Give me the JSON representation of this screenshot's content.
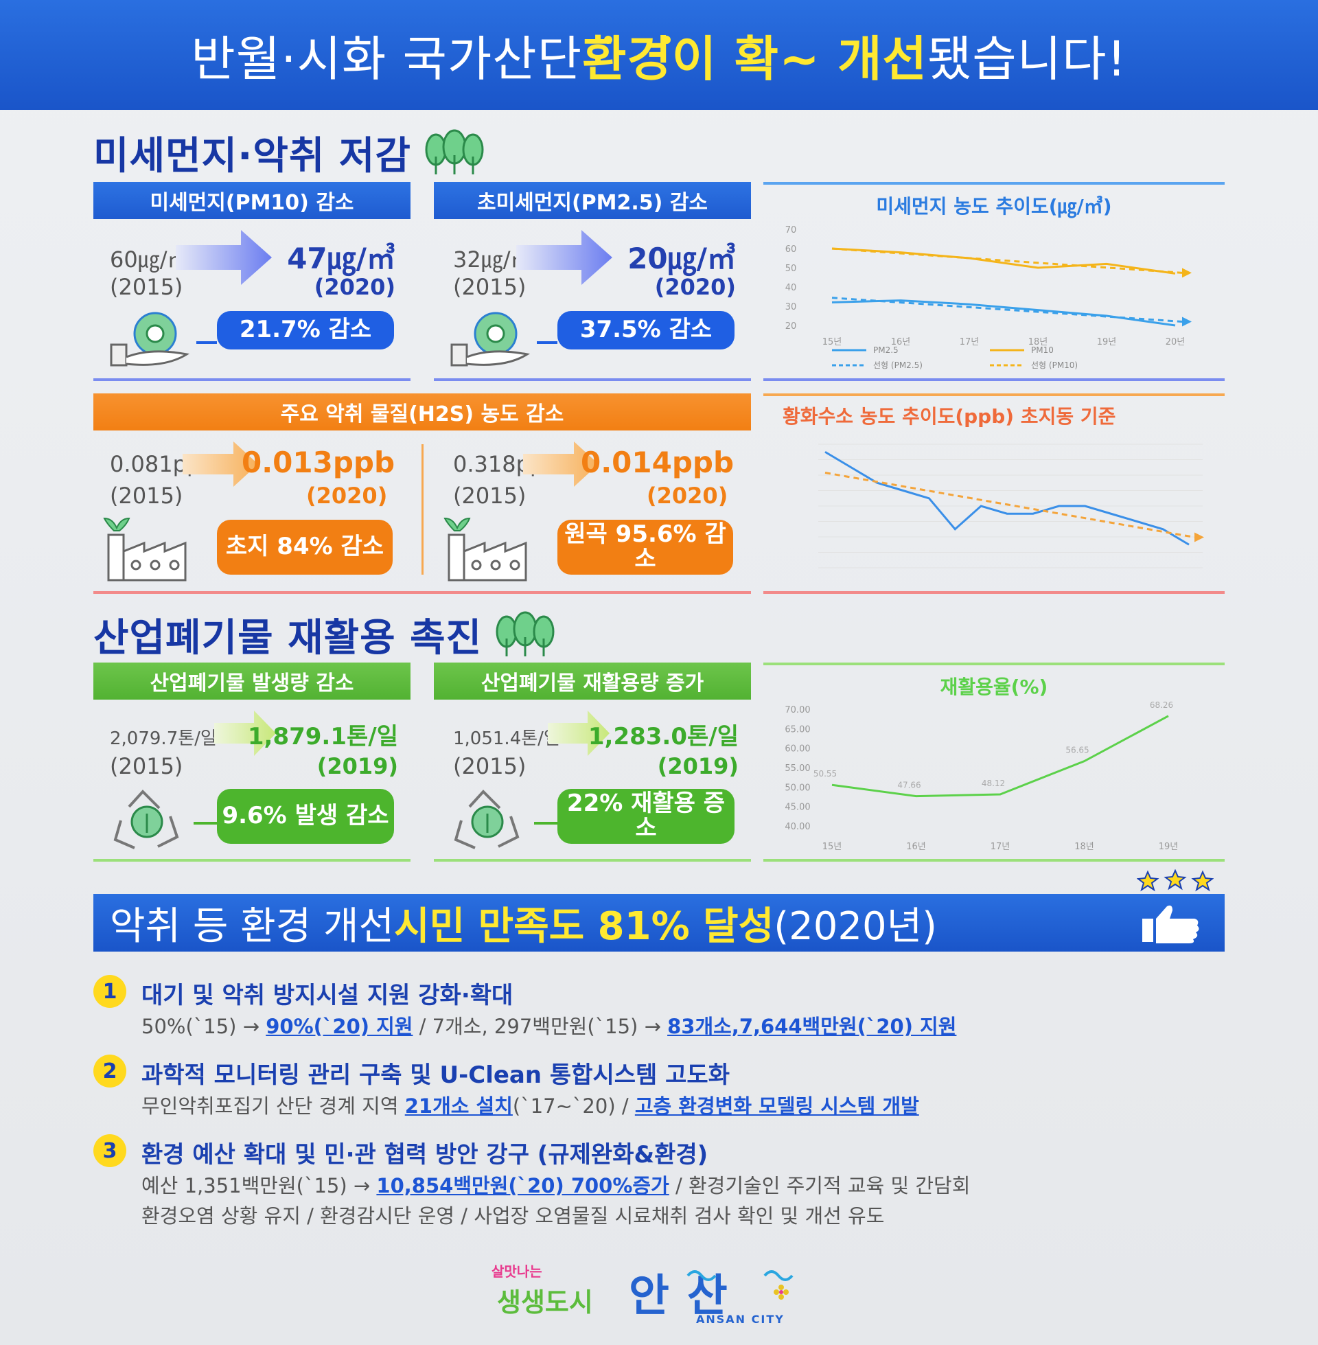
{
  "header": {
    "plain": "반월·시화 국가산단 ",
    "hl1": "환경이 확~ 개선",
    "end": "됐습니다!"
  },
  "section1": {
    "title": "미세먼지·악취 저감"
  },
  "pm10": {
    "bar": "미세먼지(PM10) 감소",
    "before": "60㎍/㎥",
    "before_year": "(2015)",
    "after": "47㎍/㎥",
    "after_year": "(2020)",
    "pill": "21.7% 감소"
  },
  "pm25": {
    "bar": "초미세먼지(PM2.5) 감소",
    "before": "32㎍/㎥",
    "before_year": "(2015)",
    "after": "20㎍/㎥",
    "after_year": "(2020)",
    "pill": "37.5% 감소"
  },
  "h2s": {
    "bar": "주요 악취 물질(H2S) 농도 감소",
    "left": {
      "before": "0.081ppb",
      "before_year": "(2015)",
      "after": "0.013ppb",
      "after_year": "(2020)",
      "pill": "초지 84% 감소"
    },
    "right": {
      "before": "0.318ppb",
      "before_year": "(2015)",
      "after": "0.014ppb",
      "after_year": "(2020)",
      "pill": "원곡 95.6% 감소"
    }
  },
  "section2": {
    "title": "산업폐기물 재활용 촉진"
  },
  "waste": {
    "bar": "산업폐기물 발생량 감소",
    "before": "2,079.7톤/일",
    "before_year": "(2015)",
    "after": "1,879.1톤/일",
    "after_year": "(2019)",
    "pill": "9.6% 발생 감소"
  },
  "recycle": {
    "bar": "산업폐기물 재활용량 증가",
    "before": "1,051.4톤/일",
    "before_year": "(2015)",
    "after": "1,283.0톤/일",
    "after_year": "(2019)",
    "pill": "22% 재활용 증소"
  },
  "banner": {
    "plain": "악취 등 환경 개선 ",
    "hl": "시민 만족도 81% 달성",
    "year": "(2020년)"
  },
  "items": [
    {
      "n": "1",
      "title": "대기 및 악취 방지시설 지원 강화·확대",
      "lines": [
        [
          {
            "t": "50%(`15) → "
          },
          {
            "t": "90%(`20) 지원",
            "b": true
          },
          {
            "t": " / 7개소, 297백만원(`15) → "
          },
          {
            "t": "83개소,7,644백만원(`20) 지원",
            "b": true
          }
        ]
      ]
    },
    {
      "n": "2",
      "title": "과학적 모니터링 관리 구축 및 U-Clean 통합시스템 고도화",
      "lines": [
        [
          {
            "t": "무인악취포집기 산단 경계 지역 "
          },
          {
            "t": "21개소 설치",
            "b": true
          },
          {
            "t": "(`17~`20) / "
          },
          {
            "t": "고층 환경변화 모델링 시스템 개발",
            "b": true
          }
        ]
      ]
    },
    {
      "n": "3",
      "title": "환경 예산 확대 및 민·관 협력 방안 강구 (규제완화&환경)",
      "lines": [
        [
          {
            "t": "예산 1,351백만원(`15) → "
          },
          {
            "t": "10,854백만원(`20) 700%증가",
            "b": true
          },
          {
            "t": " / 환경기술인 주기적 교육 및 간담회"
          }
        ],
        [
          {
            "t": "환경오염 상황 유지 / 환경감시단 운영 / 사업장 오염물질 시료채취 검사 확인 및 개선 유도"
          }
        ]
      ]
    }
  ],
  "footer": {
    "slogan_small": "살맛나는",
    "slogan": "생생도시",
    "city": "안산",
    "city_en": "ANSAN CITY"
  },
  "chart_data": [
    {
      "type": "line",
      "title": "미세먼지 농도 추이도(㎍/㎥)",
      "categories": [
        "15년",
        "16년",
        "17년",
        "18년",
        "19년",
        "20년"
      ],
      "ylim": [
        20,
        70
      ],
      "yticks": [
        "70",
        "60",
        "50",
        "40",
        "30",
        "20"
      ],
      "series": [
        {
          "name": "PM2.5",
          "values": [
            32,
            33,
            31,
            28,
            25,
            20
          ],
          "color": "#3aa0ea"
        },
        {
          "name": "PM10",
          "values": [
            60,
            58,
            55,
            50,
            52,
            47
          ],
          "color": "#f4b41a"
        }
      ],
      "legend": [
        "PM2.5",
        "PM10",
        "선형 (PM2.5)",
        "선형 (PM10)"
      ]
    },
    {
      "type": "line",
      "title": "황화수소 농도 추이도(ppb) 초지동 기준",
      "ylim": [
        0,
        0.16
      ],
      "series": [
        {
          "name": "",
          "values": [
            0.15,
            0.13,
            0.11,
            0.1,
            0.09,
            0.05,
            0.08,
            0.07,
            0.07,
            0.08,
            0.08,
            0.07,
            0.06,
            0.05,
            0.03
          ],
          "color": "#3a8fe8"
        }
      ],
      "trend_color": "#f4a43a"
    },
    {
      "type": "line",
      "title": "재활용율(%)",
      "categories": [
        "15년",
        "16년",
        "17년",
        "18년",
        "19년"
      ],
      "values": [
        50.55,
        47.66,
        48.12,
        56.65,
        68.26
      ],
      "ylim": [
        40,
        70
      ],
      "yticks": [
        "70.00",
        "65.00",
        "60.00",
        "55.00",
        "50.00",
        "45.00",
        "40.00"
      ],
      "color": "#5cd14a"
    }
  ],
  "colors": {
    "blue": "#1f5bd0",
    "orange": "#f27f13",
    "green": "#52b232",
    "yellow": "#ffe931"
  }
}
